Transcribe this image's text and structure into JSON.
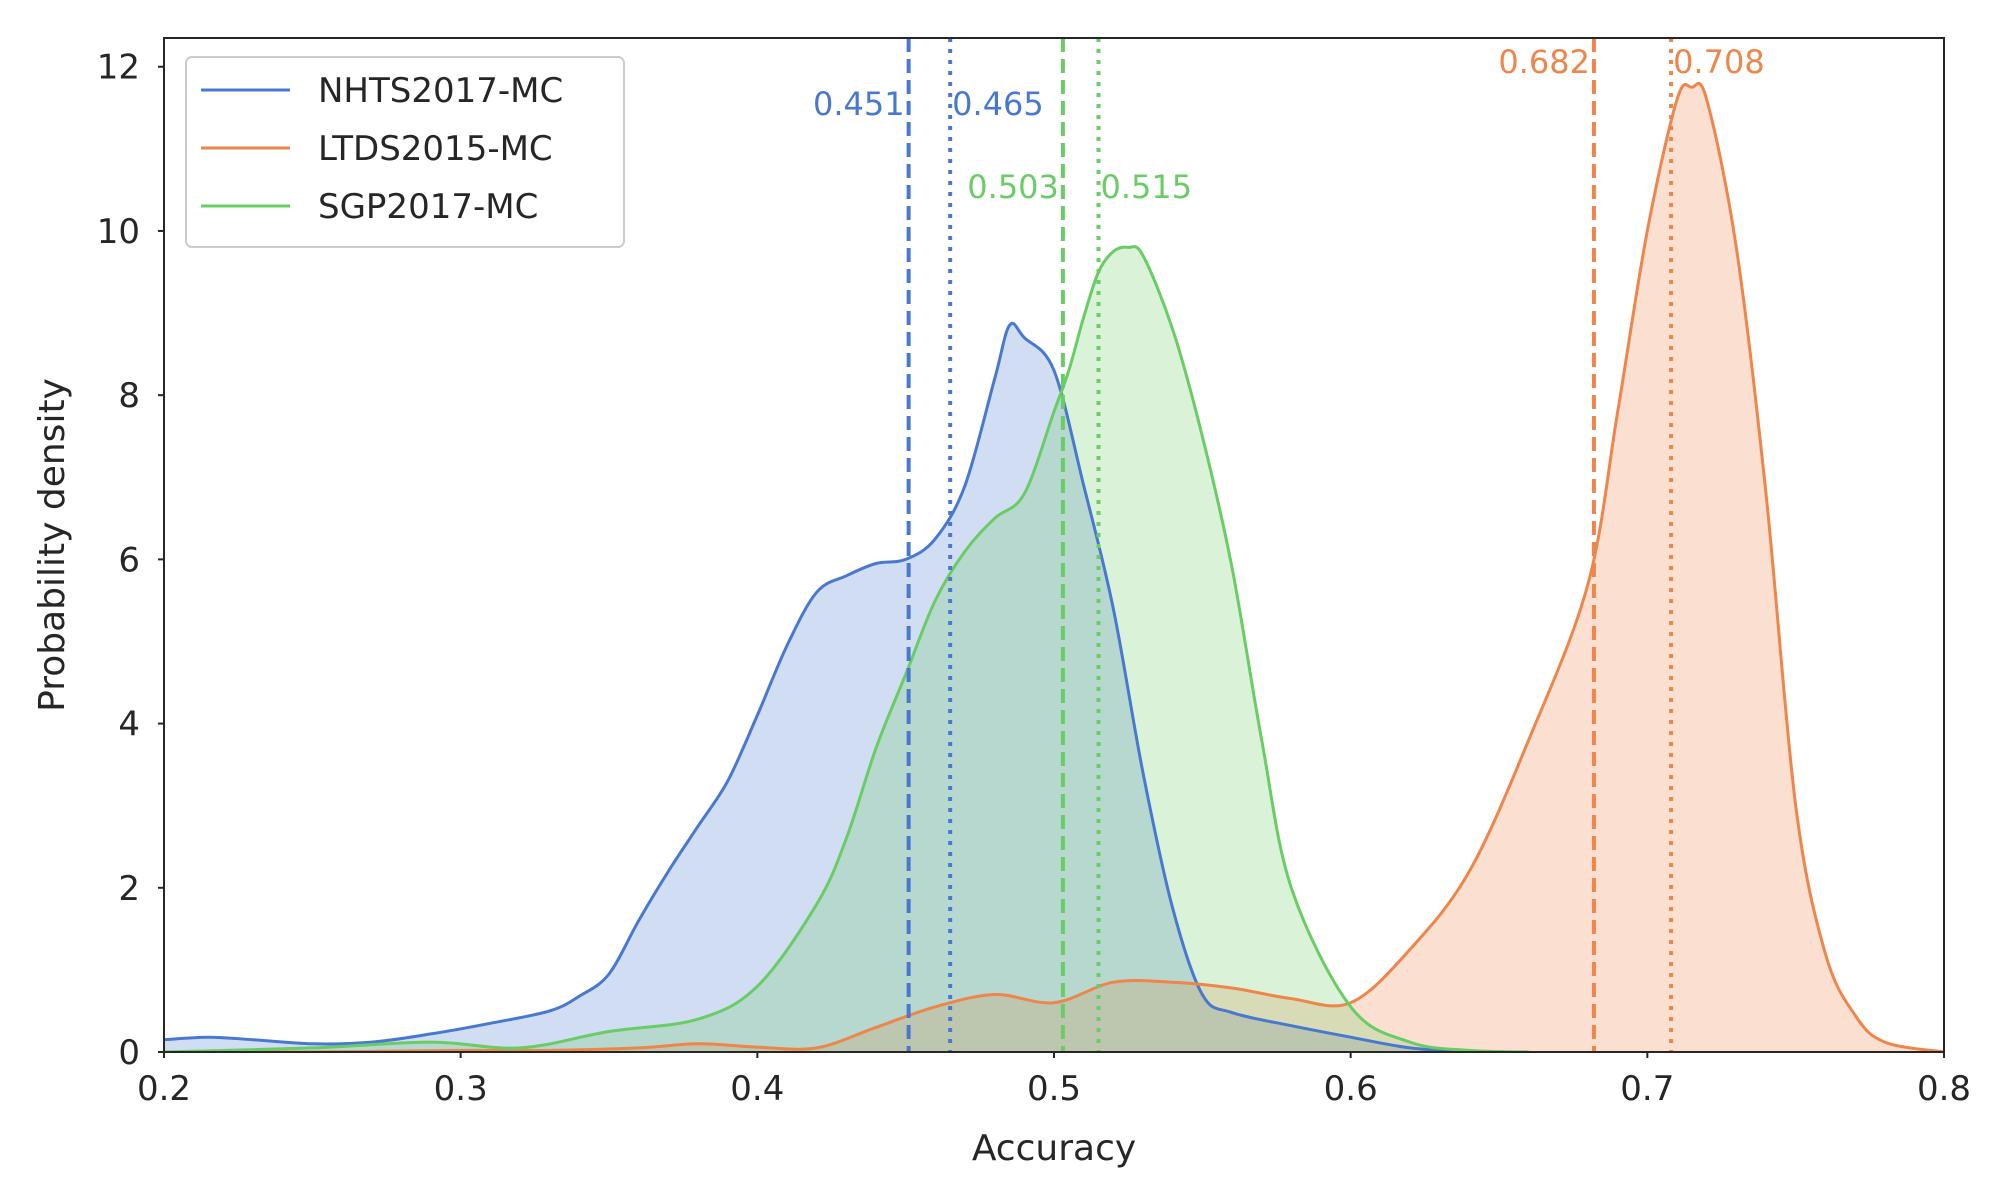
{
  "chart_data": {
    "type": "area",
    "title": "",
    "xlabel": "Accuracy",
    "ylabel": "Probability density",
    "xlim": [
      0.2,
      0.8
    ],
    "ylim": [
      0,
      12.35
    ],
    "xticks": [
      0.2,
      0.3,
      0.4,
      0.5,
      0.6,
      0.7,
      0.8
    ],
    "xtick_labels": [
      "0.2",
      "0.3",
      "0.4",
      "0.5",
      "0.6",
      "0.7",
      "0.8"
    ],
    "yticks": [
      0,
      2,
      4,
      6,
      8,
      10,
      12
    ],
    "ytick_labels": [
      "0",
      "2",
      "4",
      "6",
      "8",
      "10",
      "12"
    ],
    "grid": false,
    "legend_position": "top-left",
    "series": [
      {
        "name": "NHTS2017-MC",
        "color": "#4878d0",
        "x": [
          0.2,
          0.215,
          0.23,
          0.25,
          0.27,
          0.29,
          0.31,
          0.33,
          0.34,
          0.35,
          0.36,
          0.37,
          0.38,
          0.39,
          0.4,
          0.41,
          0.42,
          0.43,
          0.44,
          0.45,
          0.46,
          0.47,
          0.48,
          0.485,
          0.49,
          0.5,
          0.51,
          0.52,
          0.53,
          0.54,
          0.55,
          0.56,
          0.58,
          0.6,
          0.62,
          0.64
        ],
        "y": [
          0.15,
          0.18,
          0.15,
          0.1,
          0.12,
          0.22,
          0.35,
          0.5,
          0.68,
          0.95,
          1.6,
          2.2,
          2.75,
          3.3,
          4.1,
          4.95,
          5.6,
          5.8,
          5.95,
          6.0,
          6.25,
          6.9,
          8.2,
          8.85,
          8.7,
          8.3,
          6.9,
          5.4,
          3.4,
          1.75,
          0.7,
          0.48,
          0.32,
          0.18,
          0.05,
          0.0
        ],
        "mean": 0.451,
        "median": 0.465,
        "mean_label": "0.451",
        "median_label": "0.465"
      },
      {
        "name": "LTDS2015-MC",
        "color": "#ee854a",
        "x": [
          0.2,
          0.25,
          0.3,
          0.33,
          0.36,
          0.38,
          0.4,
          0.42,
          0.44,
          0.46,
          0.48,
          0.5,
          0.52,
          0.54,
          0.56,
          0.58,
          0.6,
          0.62,
          0.64,
          0.66,
          0.68,
          0.69,
          0.7,
          0.71,
          0.715,
          0.72,
          0.73,
          0.74,
          0.75,
          0.76,
          0.77,
          0.78,
          0.8
        ],
        "y": [
          0.0,
          0.0,
          0.02,
          0.02,
          0.05,
          0.1,
          0.06,
          0.05,
          0.3,
          0.55,
          0.7,
          0.6,
          0.85,
          0.85,
          0.78,
          0.65,
          0.6,
          1.25,
          2.2,
          3.8,
          5.7,
          7.8,
          10.0,
          11.6,
          11.75,
          11.6,
          9.8,
          6.8,
          3.0,
          1.2,
          0.45,
          0.12,
          0.0
        ],
        "mean": 0.682,
        "median": 0.708,
        "mean_label": "0.682",
        "median_label": "0.708"
      },
      {
        "name": "SGP2017-MC",
        "color": "#6acc64",
        "x": [
          0.2,
          0.25,
          0.29,
          0.32,
          0.35,
          0.38,
          0.4,
          0.42,
          0.43,
          0.44,
          0.45,
          0.46,
          0.47,
          0.48,
          0.49,
          0.5,
          0.505,
          0.51,
          0.515,
          0.52,
          0.525,
          0.53,
          0.54,
          0.55,
          0.56,
          0.57,
          0.58,
          0.6,
          0.62,
          0.64,
          0.66
        ],
        "y": [
          0.0,
          0.05,
          0.12,
          0.05,
          0.25,
          0.4,
          0.8,
          1.8,
          2.6,
          3.7,
          4.6,
          5.5,
          6.1,
          6.5,
          6.8,
          7.8,
          8.3,
          8.95,
          9.5,
          9.75,
          9.8,
          9.7,
          8.8,
          7.5,
          5.9,
          3.8,
          2.0,
          0.55,
          0.12,
          0.02,
          0.0
        ],
        "mean": 0.503,
        "median": 0.515,
        "mean_label": "0.503",
        "median_label": "0.515"
      }
    ]
  }
}
